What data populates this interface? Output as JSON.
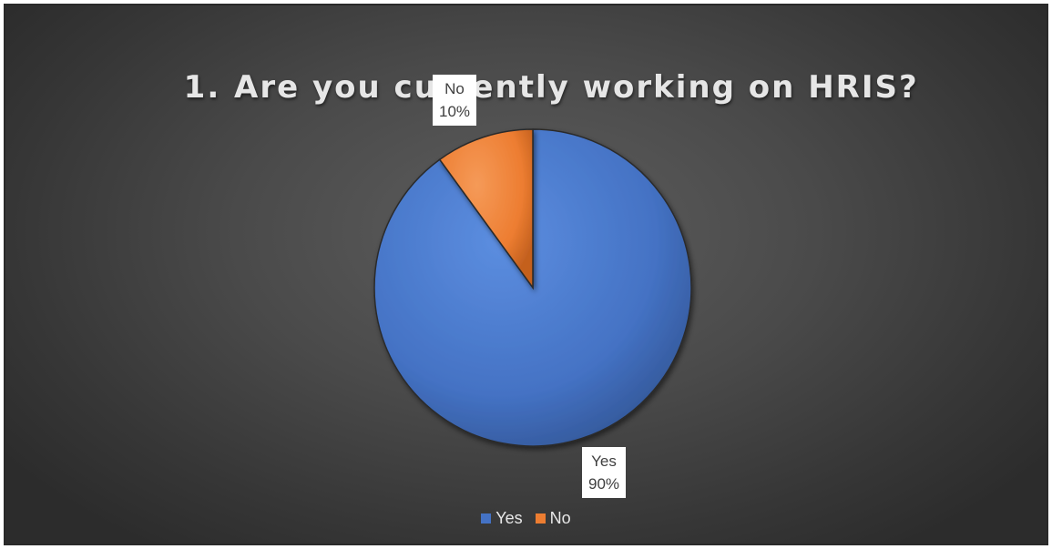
{
  "chart_data": {
    "type": "pie",
    "title": "1.\tAre you currently working on HRIS?",
    "categories": [
      "Yes",
      "No"
    ],
    "values": [
      90,
      10
    ],
    "unit": "%",
    "colors": [
      "#4472C4",
      "#ED7D31"
    ],
    "data_labels": [
      {
        "category": "Yes",
        "value": "90%"
      },
      {
        "category": "No",
        "value": "10%"
      }
    ],
    "legend": {
      "position": "bottom",
      "entries": [
        "Yes",
        "No"
      ]
    }
  }
}
